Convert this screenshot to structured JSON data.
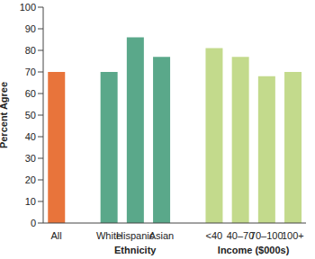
{
  "chart_data": {
    "type": "bar",
    "y_label": "Percent Agree",
    "categories": [
      "All",
      null,
      "White",
      "Hispanic",
      "Asian",
      null,
      "<40",
      "40–70",
      "70–100",
      "100+"
    ],
    "values": [
      70,
      null,
      70,
      86,
      77,
      null,
      81,
      77,
      68,
      70
    ],
    "colors": [
      "#e8743b",
      null,
      "#5aa88a",
      "#5aa88a",
      "#5aa88a",
      null,
      "#c3da8c",
      "#c3da8c",
      "#c3da8c",
      "#c3da8c"
    ],
    "ylim": [
      0,
      100
    ],
    "yticks": [
      0,
      10,
      20,
      30,
      40,
      50,
      60,
      70,
      80,
      90,
      100
    ],
    "grid": false,
    "annotations": [
      {
        "text": "Ethnicity",
        "categories": [
          "White",
          "Hispanic",
          "Asian"
        ]
      },
      {
        "text": "Income ($000s)",
        "categories": [
          "<40",
          "40–70",
          "70–100",
          "100+"
        ]
      }
    ]
  }
}
